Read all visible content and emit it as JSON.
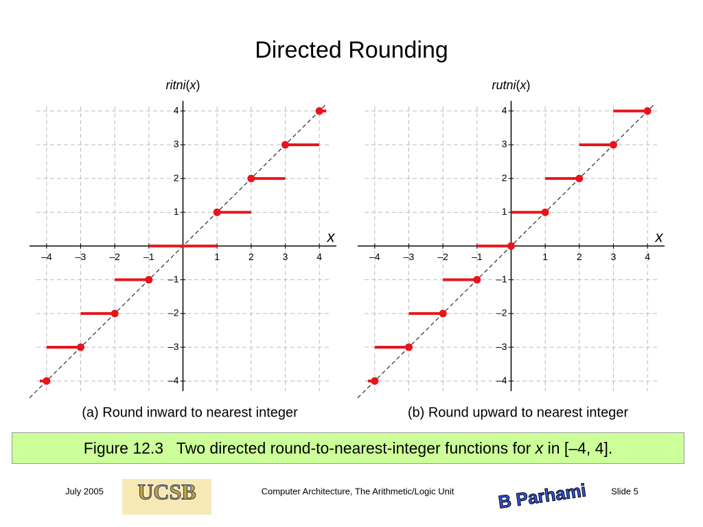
{
  "title": "Directed Rounding",
  "chart_data": [
    {
      "type": "step",
      "ylabel_parts": [
        "ritni",
        "(",
        "x",
        ")"
      ],
      "xlabel": "x",
      "caption": "(a) Round inward to nearest integer",
      "color": "#e8141b",
      "grid": true,
      "xlim": [
        -4.5,
        4.5
      ],
      "ylim": [
        -4.3,
        4.3
      ],
      "xticks": [
        {
          "value": -4,
          "label": "–4"
        },
        {
          "value": -3,
          "label": "–3"
        },
        {
          "value": -2,
          "label": "–2"
        },
        {
          "value": -1,
          "label": "–1"
        },
        1,
        2,
        3,
        4
      ],
      "yticks": [
        {
          "value": -4,
          "label": "–4"
        },
        {
          "value": -3,
          "label": "–3"
        },
        {
          "value": -2,
          "label": "–2"
        },
        {
          "value": -1,
          "label": "–1"
        },
        1,
        2,
        3,
        4
      ],
      "steps": [
        {
          "y": -4,
          "x_from": -4.2,
          "x_to": -4,
          "dot": -4
        },
        {
          "y": -3,
          "x_from": -4,
          "x_to": -3,
          "dot": -3
        },
        {
          "y": -2,
          "x_from": -3,
          "x_to": -2,
          "dot": -2
        },
        {
          "y": -1,
          "x_from": -2,
          "x_to": -1,
          "dot": -1
        },
        {
          "y": 0,
          "x_from": -1,
          "x_to": 1,
          "dot": null
        },
        {
          "y": 1,
          "x_from": 1,
          "x_to": 2,
          "dot": 1
        },
        {
          "y": 2,
          "x_from": 2,
          "x_to": 3,
          "dot": 2
        },
        {
          "y": 3,
          "x_from": 3,
          "x_to": 4,
          "dot": 3
        },
        {
          "y": 4,
          "x_from": 4,
          "x_to": 4.2,
          "dot": 4
        }
      ]
    },
    {
      "type": "step",
      "ylabel_parts": [
        "rutni",
        "(",
        "x",
        ")"
      ],
      "xlabel": "x",
      "caption": "(b) Round upward to nearest integer",
      "color": "#e8141b",
      "grid": true,
      "xlim": [
        -4.5,
        4.5
      ],
      "ylim": [
        -4.3,
        4.3
      ],
      "xticks": [
        {
          "value": -4,
          "label": "–4"
        },
        {
          "value": -3,
          "label": "–3"
        },
        {
          "value": -2,
          "label": "–2"
        },
        {
          "value": -1,
          "label": "–1"
        },
        1,
        2,
        3,
        4
      ],
      "yticks": [
        {
          "value": -4,
          "label": "–4"
        },
        {
          "value": -3,
          "label": "–3"
        },
        {
          "value": -2,
          "label": "–2"
        },
        {
          "value": -1,
          "label": "–1"
        },
        1,
        2,
        3,
        4
      ],
      "steps": [
        {
          "y": -4,
          "x_from": -4.2,
          "x_to": -4,
          "dot": -4
        },
        {
          "y": -3,
          "x_from": -4,
          "x_to": -3,
          "dot": -3
        },
        {
          "y": -2,
          "x_from": -3,
          "x_to": -2,
          "dot": -2
        },
        {
          "y": -1,
          "x_from": -2,
          "x_to": -1,
          "dot": -1
        },
        {
          "y": 0,
          "x_from": -1,
          "x_to": 0,
          "dot": 0
        },
        {
          "y": 1,
          "x_from": 0,
          "x_to": 1,
          "dot": 1
        },
        {
          "y": 2,
          "x_from": 1,
          "x_to": 2,
          "dot": 2
        },
        {
          "y": 3,
          "x_from": 2,
          "x_to": 3,
          "dot": 3
        },
        {
          "y": 4,
          "x_from": 3,
          "x_to": 4,
          "dot": 4
        }
      ]
    }
  ],
  "figure_caption": [
    "Figure 12.3   Two directed round-to-nearest-integer functions for ",
    "x",
    " in [–4, 4]."
  ],
  "footer": {
    "date": "July 2005",
    "logo": "UCSB",
    "course": "Computer Architecture, The Arithmetic/Logic Unit",
    "author_logo": "B Parhami",
    "slide": "Slide 5"
  }
}
